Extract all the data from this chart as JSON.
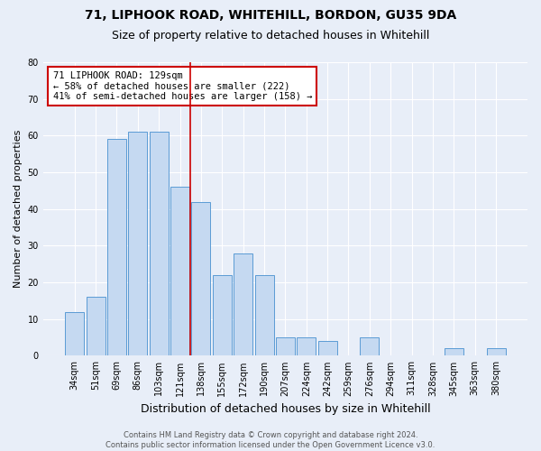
{
  "title1": "71, LIPHOOK ROAD, WHITEHILL, BORDON, GU35 9DA",
  "title2": "Size of property relative to detached houses in Whitehill",
  "xlabel": "Distribution of detached houses by size in Whitehill",
  "ylabel": "Number of detached properties",
  "categories": [
    "34sqm",
    "51sqm",
    "69sqm",
    "86sqm",
    "103sqm",
    "121sqm",
    "138sqm",
    "155sqm",
    "172sqm",
    "190sqm",
    "207sqm",
    "224sqm",
    "242sqm",
    "259sqm",
    "276sqm",
    "294sqm",
    "311sqm",
    "328sqm",
    "345sqm",
    "363sqm",
    "380sqm"
  ],
  "values": [
    12,
    16,
    59,
    61,
    61,
    46,
    42,
    22,
    28,
    22,
    5,
    5,
    4,
    0,
    5,
    0,
    0,
    0,
    2,
    0,
    2
  ],
  "bar_color": "#c5d9f1",
  "bar_edge_color": "#5b9bd5",
  "vline_color": "#cc0000",
  "vline_x_idx": 5.5,
  "annotation_text": "71 LIPHOOK ROAD: 129sqm\n← 58% of detached houses are smaller (222)\n41% of semi-detached houses are larger (158) →",
  "annotation_box_color": "#ffffff",
  "annotation_box_edge": "#cc0000",
  "bg_color": "#e8eef8",
  "plot_bg_color": "#e8eef8",
  "footer_text": "Contains HM Land Registry data © Crown copyright and database right 2024.\nContains public sector information licensed under the Open Government Licence v3.0.",
  "ylim": [
    0,
    80
  ],
  "yticks": [
    0,
    10,
    20,
    30,
    40,
    50,
    60,
    70,
    80
  ],
  "grid_color": "#ffffff",
  "title1_fontsize": 10,
  "title2_fontsize": 9,
  "ylabel_fontsize": 8,
  "xlabel_fontsize": 9,
  "tick_fontsize": 7,
  "footer_fontsize": 6
}
